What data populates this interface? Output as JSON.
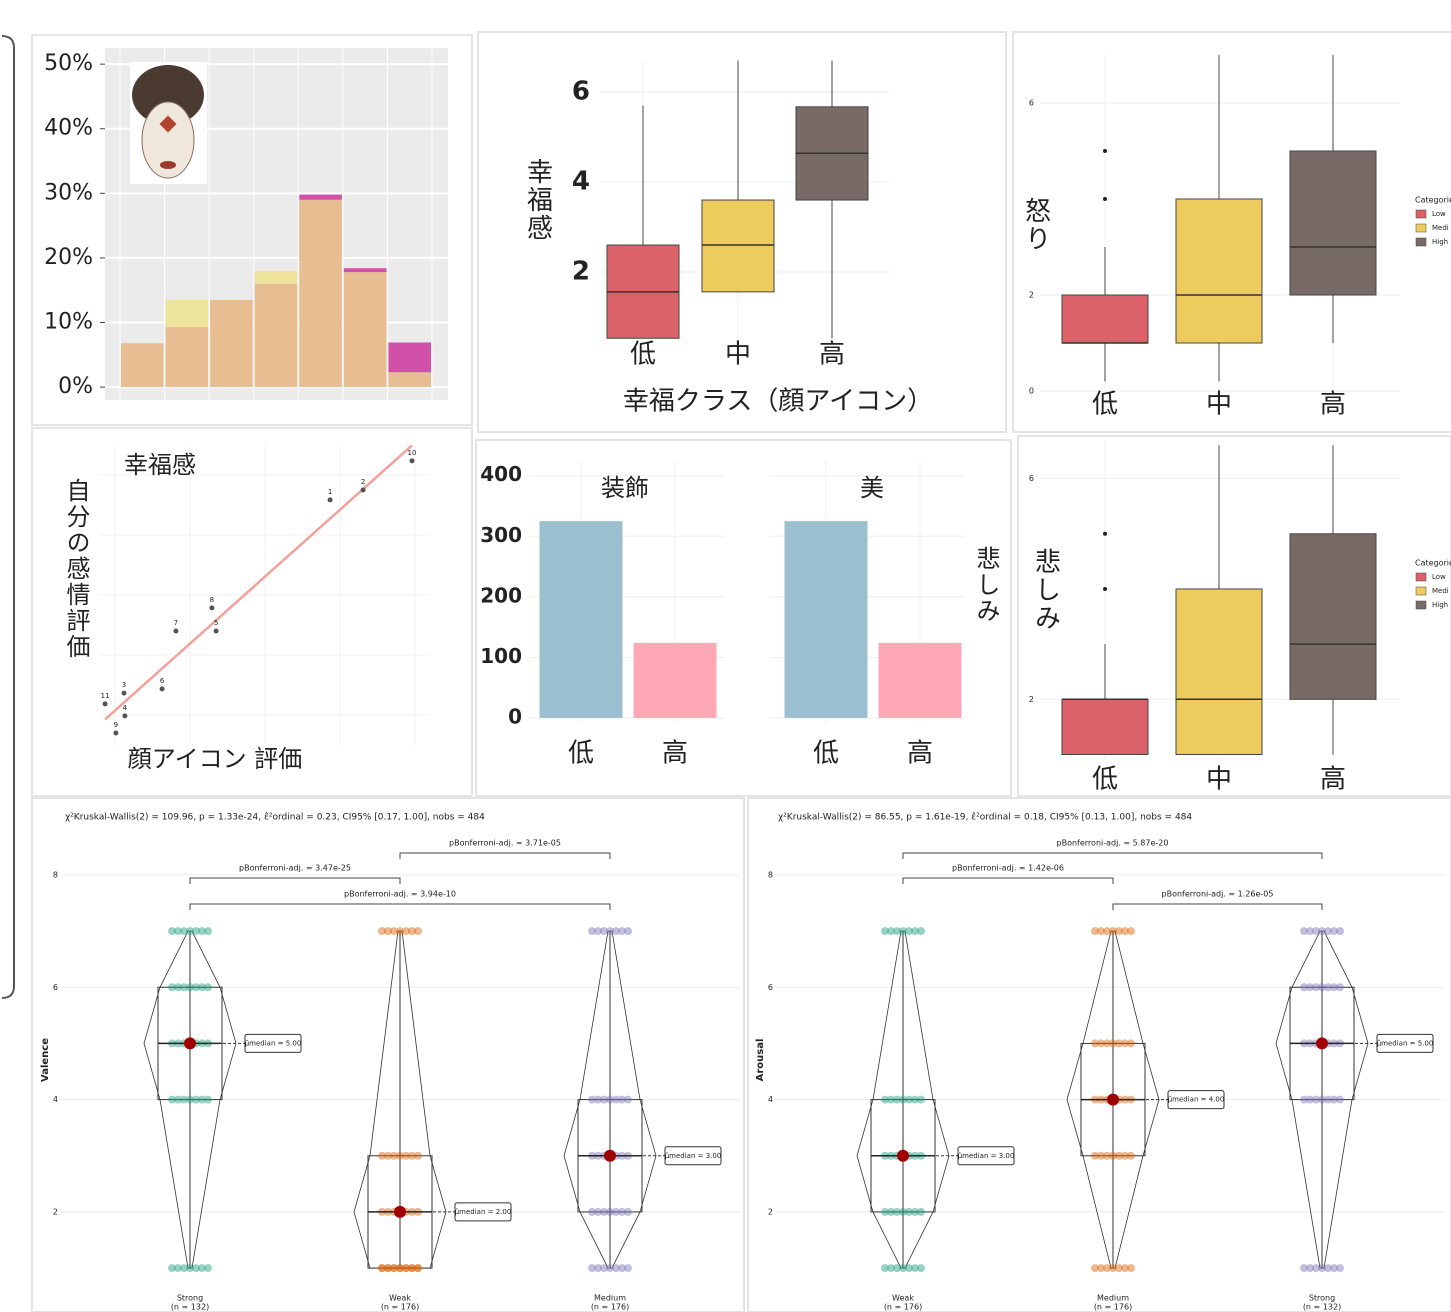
{
  "chart_data": [
    {
      "type": "stacked-bar",
      "categories": [
        null,
        null,
        null,
        null,
        null,
        null,
        null
      ],
      "series": [
        {
          "color": "#e8bd92",
          "values": [
            6.8,
            9.3,
            13.5,
            16,
            29,
            17.8,
            2.3
          ]
        },
        {
          "color": "#eee39a",
          "values": [
            0,
            4.2,
            0,
            2,
            0,
            0,
            0
          ]
        },
        {
          "color": "#d150a8",
          "values": [
            0,
            0,
            0,
            0,
            0.8,
            0.6,
            4.6
          ]
        }
      ],
      "ylim": [
        -2,
        52.5
      ],
      "yticks": [
        {
          "value": 0,
          "label": "0%"
        },
        {
          "value": 10,
          "label": "10%"
        },
        {
          "value": 20,
          "label": "20%"
        },
        {
          "value": 30,
          "label": "30%"
        },
        {
          "value": 40,
          "label": "40%"
        },
        {
          "value": 50,
          "label": "50%"
        }
      ],
      "grid": true
    },
    {
      "type": "box",
      "ylabel": "幸福感",
      "xlabel": "幸福クラス（顔アイコン）",
      "categories": [
        "低",
        "中",
        "高"
      ],
      "colors": [
        "#dc626a",
        "#eecb5d",
        "#776a67"
      ],
      "boxes": [
        {
          "min": 0.53,
          "q1": 0.53,
          "median": 1.56,
          "q3": 2.6,
          "max": 5.7,
          "outliers": []
        },
        {
          "min": 1.56,
          "q1": 1.56,
          "median": 2.6,
          "q3": 3.6,
          "max": 6.7,
          "outliers": []
        },
        {
          "min": 0.53,
          "q1": 3.6,
          "median": 4.64,
          "q3": 5.67,
          "max": 6.7,
          "outliers": []
        }
      ],
      "ylim": [
        0.38,
        6.71
      ],
      "yticks": [
        2,
        4,
        6
      ],
      "grid": true
    },
    {
      "type": "box",
      "ylabel": "怒り",
      "categories": [
        "低",
        "中",
        "高"
      ],
      "colors": [
        "#dc626a",
        "#eecb5d",
        "#776a67"
      ],
      "boxes": [
        {
          "min": 0.2,
          "q1": 1,
          "median": 1,
          "q3": 2,
          "max": 3,
          "outliers": [
            4,
            5
          ]
        },
        {
          "min": 0.2,
          "q1": 1,
          "median": 2,
          "q3": 4,
          "max": 7,
          "outliers": []
        },
        {
          "min": 1,
          "q1": 2,
          "median": 3,
          "q3": 5,
          "max": 7,
          "outliers": []
        }
      ],
      "ylim": [
        0,
        7
      ],
      "yticks": [
        0,
        2,
        6
      ],
      "grid": true,
      "legend": {
        "title": "Categorie",
        "labels": [
          "Low",
          "Medi",
          "High"
        ]
      }
    },
    {
      "type": "scatter",
      "title": "幸福感",
      "xlabel": "顔アイコン 評価",
      "ylabel": "自分の感情評価",
      "labels": [
        "11",
        "3",
        "9",
        "4",
        "6",
        "7",
        "8",
        "5",
        "1",
        "2",
        "10"
      ],
      "x": [
        1.7,
        8,
        5.3,
        8.3,
        20.7,
        25.3,
        37.3,
        38.7,
        76.7,
        87.7,
        104
      ],
      "values": [
        13.7,
        17.3,
        4,
        9.7,
        18.7,
        38,
        45.7,
        38,
        81.7,
        85,
        94.7
      ],
      "xlim": [
        0,
        110
      ],
      "ylim": [
        0,
        100
      ],
      "trend_color": "#f4a09b",
      "color": "#555555",
      "grid": true
    },
    {
      "type": "facet-bar",
      "strip": "悲しみ",
      "categories": [
        "低",
        "高"
      ],
      "colors": [
        "#9bbfcf",
        "#ffa8b5"
      ],
      "panels": [
        {
          "title": "装飾",
          "values": [
            325,
            124
          ]
        },
        {
          "title": "美",
          "values": [
            325,
            124
          ]
        }
      ],
      "ylim": [
        -10,
        426
      ],
      "yticks": [
        0,
        100,
        200,
        300,
        400
      ],
      "grid": true
    },
    {
      "type": "box",
      "ylabel": "悲しみ",
      "categories": [
        "低",
        "中",
        "高"
      ],
      "colors": [
        "#dc626a",
        "#eecb5d",
        "#776a67"
      ],
      "boxes": [
        {
          "min": 1,
          "q1": 1,
          "median": 2,
          "q3": 2,
          "max": 3,
          "outliers": [
            4,
            5
          ]
        },
        {
          "min": 1,
          "q1": 1,
          "median": 2,
          "q3": 4,
          "max": 6.6,
          "outliers": []
        },
        {
          "min": 1,
          "q1": 2,
          "median": 3,
          "q3": 5,
          "max": 6.6,
          "outliers": []
        }
      ],
      "ylim": [
        0.9,
        6.7
      ],
      "yticks": [
        2,
        6
      ],
      "grid": true,
      "legend": {
        "title": "Categorie",
        "labels": [
          "Low",
          "Medi",
          "High"
        ]
      }
    },
    {
      "type": "violin",
      "ylabel": "Valence",
      "subtitle": "χ²Kruskal-Wallis(2) = 109.96, p = 1.33e-24, ε̂²ordinal = 0.23, CI95% [0.17, 1.00], nobs = 484",
      "categories": [
        "Strong",
        "Weak",
        "Medium"
      ],
      "n_labels": [
        "(n = 132)",
        "(n = 176)",
        "(n = 176)"
      ],
      "colors": [
        "#1b9e77",
        "#d95f02",
        "#7570b3"
      ],
      "boxes": [
        {
          "min": 1,
          "q1": 4,
          "median": 5,
          "q3": 6,
          "max": 7
        },
        {
          "min": 1,
          "q1": 1,
          "median": 2,
          "q3": 3,
          "max": 7
        },
        {
          "min": 1,
          "q1": 2,
          "median": 3,
          "q3": 4,
          "max": 7
        }
      ],
      "value_labels": [
        "μ̂median = 5.00",
        "μ̂median = 2.00",
        "μ̂median = 3.00"
      ],
      "comparisons": [
        "pBonferroni-adj. = 3.71e-05",
        "pBonferroni-adj. = 3.47e-25",
        "pBonferroni-adj. = 3.94e-10"
      ],
      "ylim": [
        0.61,
        8.8
      ],
      "yticks": [
        2,
        4,
        6,
        8
      ],
      "grid": true
    },
    {
      "type": "violin",
      "ylabel": "Arousal",
      "subtitle": "χ²Kruskal-Wallis(2) = 86.55, p = 1.61e-19, ε̂²ordinal = 0.18, CI95% [0.13, 1.00], nobs = 484",
      "categories": [
        "Weak",
        "Medium",
        "Strong"
      ],
      "n_labels": [
        "(n = 176)",
        "(n = 176)",
        "(n = 132)"
      ],
      "colors": [
        "#1b9e77",
        "#d95f02",
        "#7570b3"
      ],
      "boxes": [
        {
          "min": 1,
          "q1": 2,
          "median": 3,
          "q3": 4,
          "max": 7
        },
        {
          "min": 1,
          "q1": 3,
          "median": 4,
          "q3": 5,
          "max": 7
        },
        {
          "min": 1,
          "q1": 4,
          "median": 5,
          "q3": 6,
          "max": 7
        }
      ],
      "value_labels": [
        "μ̂median = 3.00",
        "μ̂median = 4.00",
        "μ̂median = 5.00"
      ],
      "comparisons": [
        "pBonferroni-adj. = 5.87e-20",
        "pBonferroni-adj. = 1.42e-06",
        "pBonferroni-adj. = 1.26e-05"
      ],
      "ylim": [
        0.61,
        8.8
      ],
      "yticks": [
        2,
        4,
        6,
        8
      ],
      "grid": true
    }
  ]
}
